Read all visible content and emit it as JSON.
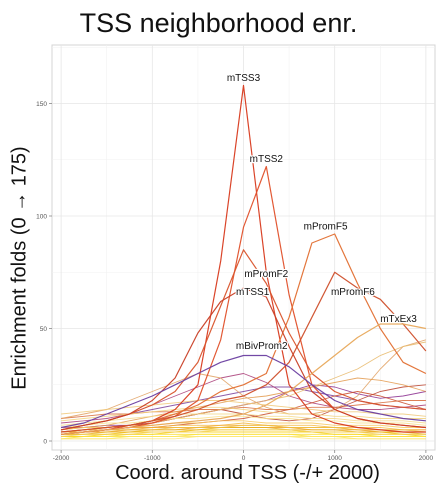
{
  "chart_data": {
    "type": "line",
    "title": "TSS neighborhood enr.",
    "xlabel": "Coord. around TSS (-/+ 2000)",
    "ylabel": "Enrichment folds (0 → 175)",
    "xlim": [
      -2100,
      2100
    ],
    "ylim": [
      -4,
      176
    ],
    "x_ticks": [
      -2000,
      -1000,
      0,
      1000,
      2000
    ],
    "x_tick_labels": [
      "-2000",
      "-1000",
      "0",
      "1000",
      "2000"
    ],
    "y_ticks": [
      0,
      50,
      100,
      150
    ],
    "y_tick_labels": [
      "0",
      "50",
      "100",
      "150"
    ],
    "grid": true,
    "x": [
      -2000,
      -1750,
      -1500,
      -1250,
      -1000,
      -750,
      -500,
      -250,
      0,
      250,
      500,
      750,
      1000,
      1250,
      1500,
      1750,
      2000
    ],
    "series": [
      {
        "name": "mTSS3",
        "color": "#d83a1e",
        "label_at": [
          0,
          160
        ],
        "values": [
          3,
          4,
          5,
          7,
          9,
          14,
          25,
          80,
          158,
          75,
          25,
          12,
          8,
          6,
          5,
          4,
          4
        ]
      },
      {
        "name": "mTSS2",
        "color": "#e0502a",
        "label_at": [
          250,
          124
        ],
        "values": [
          3,
          4,
          5,
          6,
          8,
          11,
          18,
          45,
          95,
          122,
          65,
          25,
          14,
          10,
          8,
          7,
          6
        ]
      },
      {
        "name": "mPromF5",
        "color": "#e26f32",
        "label_at": [
          900,
          94
        ],
        "values": [
          4,
          5,
          6,
          7,
          9,
          12,
          16,
          22,
          25,
          30,
          55,
          88,
          92,
          70,
          50,
          35,
          30
        ]
      },
      {
        "name": "mPromF2",
        "color": "#d9542c",
        "label_at": [
          250,
          73
        ],
        "values": [
          5,
          7,
          9,
          12,
          16,
          22,
          35,
          60,
          85,
          70,
          48,
          30,
          22,
          18,
          16,
          15,
          14
        ]
      },
      {
        "name": "mPromF6",
        "color": "#cf4f2b",
        "label_at": [
          1200,
          65
        ],
        "values": [
          4,
          5,
          6,
          7,
          9,
          11,
          14,
          18,
          20,
          25,
          35,
          55,
          75,
          68,
          63,
          52,
          40
        ]
      },
      {
        "name": "mTSS1",
        "color": "#c93f26",
        "label_at": [
          100,
          65
        ],
        "values": [
          5,
          7,
          9,
          12,
          18,
          28,
          48,
          62,
          68,
          64,
          42,
          22,
          14,
          10,
          8,
          7,
          6
        ]
      },
      {
        "name": "mTxEx3",
        "color": "#e8a85a",
        "label_at": [
          1700,
          53
        ],
        "values": [
          3,
          4,
          5,
          6,
          7,
          8,
          9,
          10,
          12,
          16,
          22,
          30,
          38,
          46,
          52,
          52,
          50
        ]
      },
      {
        "name": "mBivProm2",
        "color": "#6a3ea0",
        "label_at": [
          200,
          41
        ],
        "values": [
          6,
          8,
          12,
          16,
          20,
          25,
          30,
          35,
          38,
          38,
          33,
          25,
          18,
          14,
          12,
          10,
          9
        ]
      },
      {
        "name": "",
        "color": "#7a3f9a",
        "values": [
          5,
          7,
          9,
          12,
          14,
          16,
          18,
          20,
          22,
          24,
          24,
          22,
          20,
          18,
          16,
          15,
          14
        ]
      },
      {
        "name": "",
        "color": "#8a2c8e",
        "values": [
          6,
          6,
          7,
          7,
          8,
          10,
          12,
          14,
          16,
          18,
          22,
          25,
          24,
          21,
          19,
          20,
          22
        ]
      },
      {
        "name": "",
        "color": "#a83a76",
        "values": [
          8,
          9,
          10,
          12,
          16,
          20,
          24,
          28,
          30,
          26,
          20,
          17,
          15,
          14,
          14,
          15,
          16
        ]
      },
      {
        "name": "",
        "color": "#b8402a",
        "values": [
          4,
          5,
          6,
          7,
          8,
          10,
          12,
          14,
          12,
          10,
          9,
          10,
          14,
          18,
          22,
          24,
          25
        ]
      },
      {
        "name": "",
        "color": "#c94a2a",
        "values": [
          3,
          4,
          5,
          6,
          6,
          7,
          8,
          9,
          10,
          12,
          14,
          17,
          20,
          22,
          20,
          17,
          14
        ]
      },
      {
        "name": "",
        "color": "#d76a3a",
        "values": [
          10,
          11,
          12,
          12,
          13,
          13,
          14,
          14,
          15,
          14,
          14,
          15,
          15,
          16,
          17,
          18,
          18
        ]
      },
      {
        "name": "",
        "color": "#e0a060",
        "values": [
          10,
          12,
          14,
          18,
          22,
          26,
          30,
          28,
          20,
          15,
          12,
          12,
          14,
          20,
          32,
          42,
          45
        ]
      },
      {
        "name": "",
        "color": "#e8b96a",
        "values": [
          3,
          4,
          5,
          6,
          8,
          10,
          12,
          14,
          16,
          18,
          20,
          24,
          28,
          32,
          38,
          42,
          44
        ]
      },
      {
        "name": "",
        "color": "#e39a4e",
        "values": [
          5,
          6,
          7,
          9,
          11,
          13,
          15,
          17,
          19,
          20,
          22,
          24,
          26,
          28,
          27,
          25,
          22
        ]
      },
      {
        "name": "",
        "color": "#f0c878",
        "values": [
          12,
          13,
          14,
          15,
          16,
          17,
          18,
          18,
          17,
          16,
          15,
          14,
          13,
          13,
          12,
          12,
          11
        ]
      },
      {
        "name": "",
        "color": "#f2d27e",
        "values": [
          9,
          10,
          11,
          12,
          13,
          14,
          15,
          15,
          14,
          13,
          12,
          12,
          11,
          11,
          10,
          10,
          10
        ]
      },
      {
        "name": "",
        "color": "#f5d98a",
        "values": [
          7,
          8,
          9,
          10,
          11,
          12,
          12,
          12,
          12,
          11,
          11,
          10,
          10,
          9,
          9,
          9,
          8
        ]
      },
      {
        "name": "",
        "color": "#f8e08c",
        "values": [
          6,
          7,
          8,
          8,
          9,
          10,
          10,
          11,
          11,
          10,
          10,
          9,
          9,
          8,
          8,
          8,
          7
        ]
      },
      {
        "name": "",
        "color": "#f7c75a",
        "values": [
          5,
          6,
          6,
          7,
          7,
          8,
          8,
          9,
          9,
          8,
          8,
          8,
          7,
          7,
          7,
          6,
          6
        ]
      },
      {
        "name": "",
        "color": "#f4b840",
        "values": [
          4,
          5,
          5,
          6,
          6,
          7,
          7,
          7,
          8,
          7,
          7,
          7,
          6,
          6,
          6,
          5,
          5
        ]
      },
      {
        "name": "",
        "color": "#f2a830",
        "values": [
          4,
          4,
          5,
          5,
          6,
          6,
          6,
          7,
          7,
          7,
          6,
          6,
          6,
          5,
          5,
          5,
          5
        ]
      },
      {
        "name": "",
        "color": "#f0a020",
        "values": [
          3,
          4,
          4,
          5,
          5,
          5,
          6,
          6,
          6,
          6,
          6,
          5,
          5,
          5,
          4,
          4,
          4
        ]
      },
      {
        "name": "",
        "color": "#f5c000",
        "values": [
          3,
          3,
          3,
          4,
          4,
          4,
          5,
          5,
          5,
          5,
          5,
          4,
          4,
          4,
          4,
          3,
          3
        ]
      },
      {
        "name": "",
        "color": "#f7cf10",
        "values": [
          2,
          2,
          3,
          3,
          3,
          4,
          4,
          4,
          4,
          4,
          4,
          4,
          3,
          3,
          3,
          3,
          2
        ]
      },
      {
        "name": "",
        "color": "#f9da20",
        "values": [
          2,
          2,
          2,
          3,
          3,
          3,
          3,
          3,
          3,
          3,
          3,
          3,
          3,
          3,
          2,
          2,
          2
        ]
      },
      {
        "name": "",
        "color": "#fae240",
        "values": [
          1,
          2,
          2,
          2,
          2,
          2,
          3,
          3,
          3,
          3,
          3,
          2,
          2,
          2,
          2,
          2,
          2
        ]
      },
      {
        "name": "",
        "color": "#fbe860",
        "values": [
          1,
          1,
          1,
          2,
          2,
          2,
          2,
          2,
          2,
          2,
          2,
          2,
          2,
          1,
          1,
          1,
          1
        ]
      },
      {
        "name": "",
        "color": "#fde878",
        "values": [
          1,
          1,
          1,
          1,
          1,
          1,
          2,
          2,
          2,
          2,
          2,
          1,
          1,
          1,
          1,
          1,
          1
        ]
      },
      {
        "name": "",
        "color": "#e8b020",
        "values": [
          3,
          3,
          4,
          4,
          5,
          5,
          5,
          6,
          6,
          6,
          5,
          5,
          5,
          4,
          4,
          4,
          3
        ]
      },
      {
        "name": "",
        "color": "#eec040",
        "values": [
          4,
          4,
          5,
          5,
          5,
          6,
          6,
          6,
          7,
          7,
          6,
          6,
          6,
          5,
          5,
          5,
          4
        ]
      },
      {
        "name": "",
        "color": "#f3d060",
        "values": [
          2,
          3,
          3,
          3,
          4,
          4,
          4,
          5,
          5,
          5,
          5,
          4,
          4,
          4,
          3,
          3,
          3
        ]
      }
    ]
  }
}
